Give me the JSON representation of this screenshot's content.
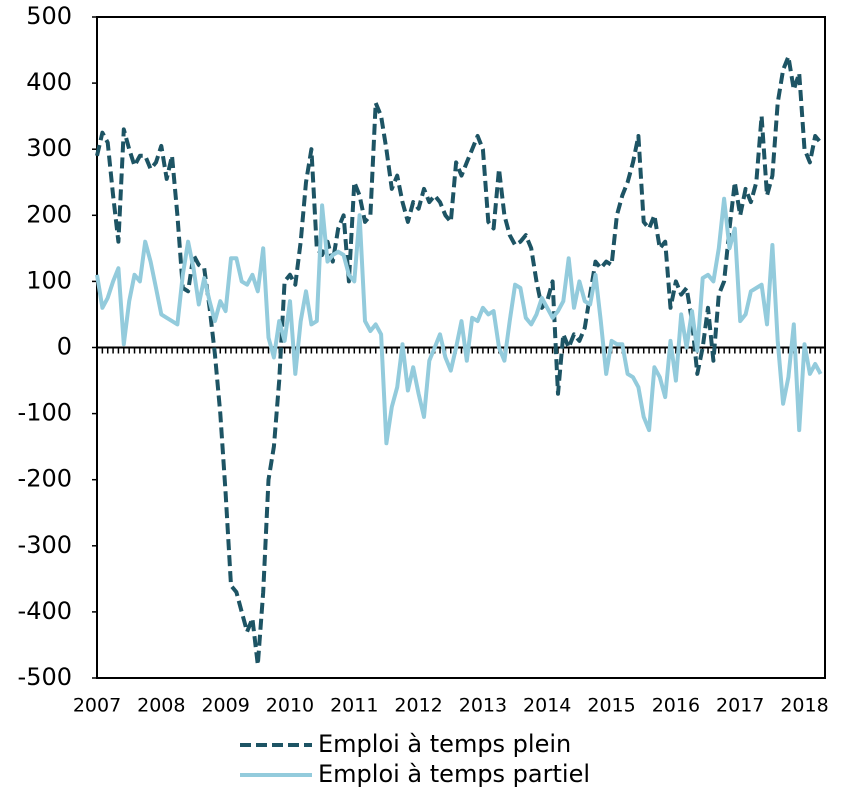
{
  "chart_data": {
    "type": "line",
    "categories": [
      "2007",
      null,
      null,
      null,
      null,
      null,
      null,
      null,
      null,
      null,
      null,
      null,
      "2008",
      null,
      null,
      null,
      null,
      null,
      null,
      null,
      null,
      null,
      null,
      null,
      "2009",
      null,
      null,
      null,
      null,
      null,
      null,
      null,
      null,
      null,
      null,
      null,
      "2010",
      null,
      null,
      null,
      null,
      null,
      null,
      null,
      null,
      null,
      null,
      null,
      "2011",
      null,
      null,
      null,
      null,
      null,
      null,
      null,
      null,
      null,
      null,
      null,
      "2012",
      null,
      null,
      null,
      null,
      null,
      null,
      null,
      null,
      null,
      null,
      null,
      "2013",
      null,
      null,
      null,
      null,
      null,
      null,
      null,
      null,
      null,
      null,
      null,
      "2014",
      null,
      null,
      null,
      null,
      null,
      null,
      null,
      null,
      null,
      null,
      null,
      "2015",
      null,
      null,
      null,
      null,
      null,
      null,
      null,
      null,
      null,
      null,
      null,
      "2016",
      null,
      null,
      null,
      null,
      null,
      null,
      null,
      null,
      null,
      null,
      null,
      "2017",
      null,
      null,
      null,
      null,
      null,
      null,
      null,
      null,
      null,
      null,
      null,
      "2018",
      null,
      null,
      null
    ],
    "series": [
      {
        "name": "Emploi à temps plein",
        "color": "#1d5464",
        "dash": true,
        "values": [
          290,
          325,
          310,
          230,
          160,
          330,
          300,
          275,
          290,
          290,
          270,
          280,
          305,
          255,
          290,
          200,
          90,
          85,
          140,
          125,
          120,
          60,
          -10,
          -100,
          -220,
          -360,
          -370,
          -400,
          -430,
          -410,
          -480,
          -370,
          -200,
          -150,
          -50,
          100,
          110,
          95,
          160,
          250,
          300,
          150,
          140,
          160,
          130,
          180,
          200,
          100,
          250,
          230,
          190,
          200,
          370,
          350,
          300,
          240,
          260,
          220,
          190,
          220,
          210,
          240,
          220,
          230,
          220,
          200,
          190,
          280,
          260,
          280,
          300,
          320,
          300,
          190,
          180,
          270,
          200,
          170,
          155,
          160,
          170,
          150,
          100,
          60,
          70,
          100,
          -70,
          20,
          0,
          20,
          10,
          30,
          80,
          130,
          120,
          130,
          125,
          200,
          230,
          250,
          280,
          320,
          190,
          180,
          200,
          150,
          160,
          60,
          100,
          80,
          90,
          40,
          -40,
          0,
          60,
          -20,
          80,
          100,
          180,
          250,
          200,
          240,
          220,
          250,
          350,
          230,
          260,
          370,
          420,
          440,
          390,
          415,
          300,
          280,
          320,
          310
        ]
      },
      {
        "name": "Emploi à temps partiel",
        "color": "#93cbdc",
        "dash": false,
        "values": [
          110,
          60,
          75,
          100,
          120,
          5,
          70,
          110,
          100,
          160,
          130,
          90,
          50,
          45,
          40,
          35,
          110,
          160,
          120,
          65,
          105,
          70,
          40,
          70,
          55,
          135,
          135,
          100,
          95,
          110,
          85,
          150,
          15,
          -15,
          40,
          10,
          70,
          -40,
          40,
          85,
          35,
          40,
          215,
          130,
          140,
          145,
          140,
          110,
          100,
          200,
          40,
          25,
          35,
          20,
          -145,
          -90,
          -60,
          5,
          -65,
          -30,
          -70,
          -105,
          -20,
          0,
          20,
          -15,
          -35,
          0,
          40,
          -20,
          45,
          40,
          60,
          50,
          55,
          0,
          -20,
          40,
          95,
          90,
          45,
          35,
          50,
          75,
          60,
          45,
          55,
          70,
          135,
          60,
          100,
          70,
          65,
          110,
          40,
          -40,
          10,
          5,
          5,
          -40,
          -45,
          -60,
          -105,
          -125,
          -30,
          -45,
          -75,
          10,
          -50,
          50,
          0,
          55,
          -5,
          105,
          110,
          100,
          150,
          225,
          150,
          180,
          40,
          50,
          85,
          90,
          95,
          35,
          155,
          10,
          -85,
          -45,
          35,
          -125,
          5,
          -40,
          -25,
          -40
        ]
      }
    ],
    "ylim": [
      -500,
      500
    ],
    "yticks": [
      -500,
      -400,
      -300,
      -200,
      -100,
      0,
      100,
      200,
      300,
      400,
      500
    ],
    "legend": "bottom"
  }
}
